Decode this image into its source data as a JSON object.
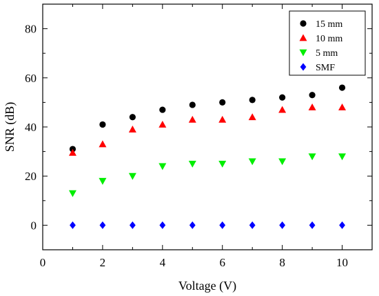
{
  "chart_data": {
    "type": "scatter",
    "xlabel": "Voltage (V)",
    "ylabel": "SNR (dB)",
    "xlim": [
      0,
      11
    ],
    "ylim": [
      -10,
      90
    ],
    "xticks": [
      0,
      2,
      4,
      6,
      8,
      10
    ],
    "yticks": [
      0,
      20,
      40,
      60,
      80
    ],
    "xtick_labels": [
      "0",
      "2",
      "4",
      "6",
      "8",
      "10"
    ],
    "ytick_labels": [
      "0",
      "20",
      "40",
      "60",
      "80"
    ],
    "grid": false,
    "legend_position": "top-right",
    "x": [
      1,
      2,
      3,
      4,
      5,
      6,
      7,
      8,
      9,
      10
    ],
    "series": [
      {
        "name": "15 mm",
        "marker": "circle",
        "color": "#000000",
        "values": [
          31,
          41,
          44,
          47,
          49,
          50,
          51,
          52,
          53,
          56
        ]
      },
      {
        "name": "10 mm",
        "marker": "triangle-up",
        "color": "#ff0000",
        "values": [
          29.5,
          33,
          39,
          41,
          43,
          43,
          44,
          47,
          48,
          48
        ]
      },
      {
        "name": "5 mm",
        "marker": "triangle-down",
        "color": "#00ee00",
        "values": [
          13,
          18,
          20,
          24,
          25,
          25,
          26,
          26,
          28,
          28
        ]
      },
      {
        "name": "SMF",
        "marker": "diamond",
        "color": "#0000ff",
        "values": [
          0,
          0,
          0,
          0,
          0,
          0,
          0,
          0,
          0,
          0
        ]
      }
    ]
  }
}
